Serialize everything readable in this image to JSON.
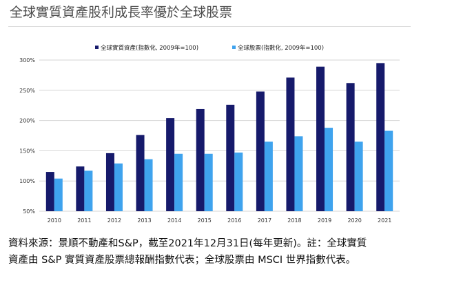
{
  "title": "全球實質資產股利成長率優於全球股票",
  "source": {
    "line1": "資料來源：景順不動產和S&P，截至2021年12月31日(每年更新)。註：全球實質",
    "line2": "資產由 S&P 實質資產股票總報酬指數代表；全球股票由 MSCI 世界指數代表。"
  },
  "colors": {
    "series1": "#161a6b",
    "series2": "#3fa3ee",
    "grid": "#d6d6d6",
    "axis_text": "#333333"
  },
  "chart_data": {
    "type": "bar",
    "categories": [
      "2010",
      "2011",
      "2012",
      "2013",
      "2014",
      "2015",
      "2016",
      "2017",
      "2018",
      "2019",
      "2020",
      "2021"
    ],
    "series": [
      {
        "name": "全球實質資產(指數化, 2009年=100)",
        "values": [
          115,
          124,
          146,
          176,
          204,
          219,
          226,
          248,
          271,
          289,
          262,
          295
        ]
      },
      {
        "name": "全球股票(指數化, 2009年=100)",
        "values": [
          104,
          117,
          129,
          136,
          145,
          145,
          147,
          165,
          174,
          188,
          165,
          183
        ]
      }
    ],
    "yticks": [
      "300%",
      "250%",
      "200%",
      "150%",
      "100%",
      "50%"
    ],
    "ylim": [
      50,
      300
    ],
    "grid": true,
    "legend_position": "top"
  }
}
